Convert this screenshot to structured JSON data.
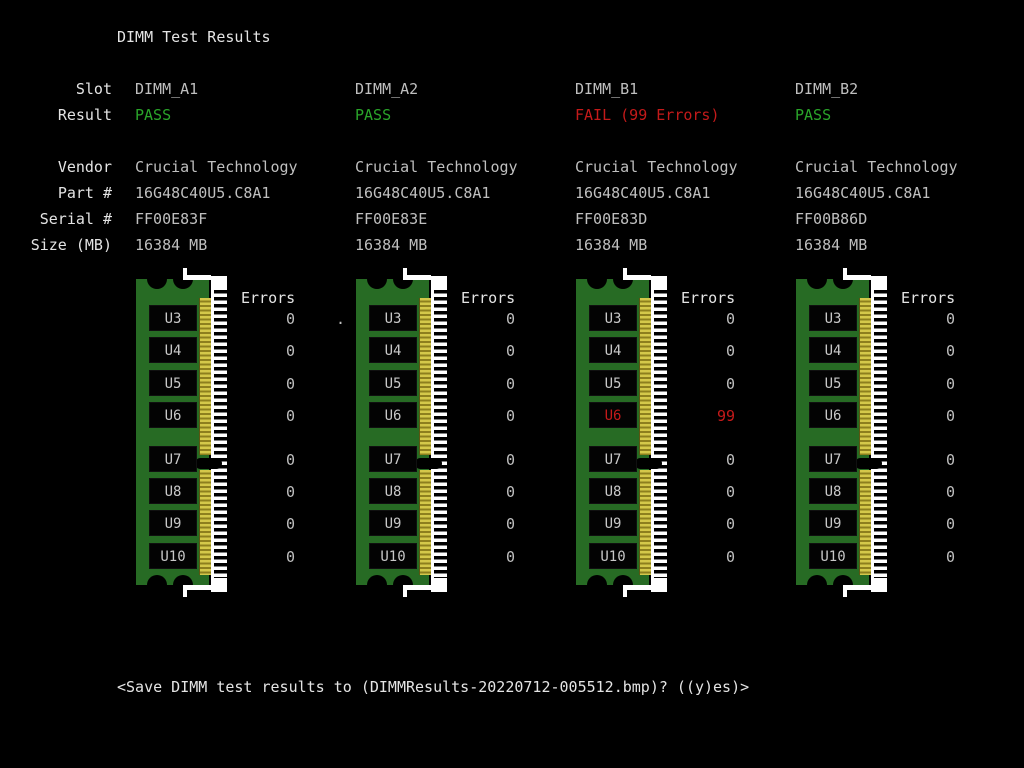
{
  "title": "DIMM Test Results",
  "labels": {
    "slot": "Slot",
    "result": "Result",
    "vendor": "Vendor",
    "part": "Part #",
    "serial": "Serial #",
    "size": "Size (MB)"
  },
  "errors_header": "Errors",
  "stray_dot": ".",
  "footer_prompt": "<Save DIMM test results to (DIMMResults-20220712-005512.bmp)? ((y)es)>",
  "colors": {
    "background": "#000000",
    "text": "#e4e4e4",
    "value": "#bfbfbf",
    "pass": "#2aa52a",
    "fail": "#c41a1a",
    "pcb_green": "#276b24",
    "gold_pin": "#d4c84a",
    "gold_pin_dark": "#8d7f1e",
    "socket_white": "#ffffff"
  },
  "slots": [
    {
      "name": "DIMM_A1",
      "result": "PASS",
      "status": "pass",
      "vendor": "Crucial Technology",
      "part": "16G48C40U5.C8A1",
      "serial": "FF00E83F",
      "size": "16384 MB",
      "chips": [
        {
          "label": "U3",
          "errors": "0",
          "status": "ok"
        },
        {
          "label": "U4",
          "errors": "0",
          "status": "ok"
        },
        {
          "label": "U5",
          "errors": "0",
          "status": "ok"
        },
        {
          "label": "U6",
          "errors": "0",
          "status": "ok"
        },
        {
          "label": "U7",
          "errors": "0",
          "status": "ok"
        },
        {
          "label": "U8",
          "errors": "0",
          "status": "ok"
        },
        {
          "label": "U9",
          "errors": "0",
          "status": "ok"
        },
        {
          "label": "U10",
          "errors": "0",
          "status": "ok"
        }
      ]
    },
    {
      "name": "DIMM_A2",
      "result": "PASS",
      "status": "pass",
      "vendor": "Crucial Technology",
      "part": "16G48C40U5.C8A1",
      "serial": "FF00E83E",
      "size": "16384 MB",
      "chips": [
        {
          "label": "U3",
          "errors": "0",
          "status": "ok"
        },
        {
          "label": "U4",
          "errors": "0",
          "status": "ok"
        },
        {
          "label": "U5",
          "errors": "0",
          "status": "ok"
        },
        {
          "label": "U6",
          "errors": "0",
          "status": "ok"
        },
        {
          "label": "U7",
          "errors": "0",
          "status": "ok"
        },
        {
          "label": "U8",
          "errors": "0",
          "status": "ok"
        },
        {
          "label": "U9",
          "errors": "0",
          "status": "ok"
        },
        {
          "label": "U10",
          "errors": "0",
          "status": "ok"
        }
      ]
    },
    {
      "name": "DIMM_B1",
      "result": "FAIL (99 Errors)",
      "status": "fail",
      "vendor": "Crucial Technology",
      "part": "16G48C40U5.C8A1",
      "serial": "FF00E83D",
      "size": "16384 MB",
      "chips": [
        {
          "label": "U3",
          "errors": "0",
          "status": "ok"
        },
        {
          "label": "U4",
          "errors": "0",
          "status": "ok"
        },
        {
          "label": "U5",
          "errors": "0",
          "status": "ok"
        },
        {
          "label": "U6",
          "errors": "99",
          "status": "fail"
        },
        {
          "label": "U7",
          "errors": "0",
          "status": "ok"
        },
        {
          "label": "U8",
          "errors": "0",
          "status": "ok"
        },
        {
          "label": "U9",
          "errors": "0",
          "status": "ok"
        },
        {
          "label": "U10",
          "errors": "0",
          "status": "ok"
        }
      ]
    },
    {
      "name": "DIMM_B2",
      "result": "PASS",
      "status": "pass",
      "vendor": "Crucial Technology",
      "part": "16G48C40U5.C8A1",
      "serial": "FF00B86D",
      "size": "16384 MB",
      "chips": [
        {
          "label": "U3",
          "errors": "0",
          "status": "ok"
        },
        {
          "label": "U4",
          "errors": "0",
          "status": "ok"
        },
        {
          "label": "U5",
          "errors": "0",
          "status": "ok"
        },
        {
          "label": "U6",
          "errors": "0",
          "status": "ok"
        },
        {
          "label": "U7",
          "errors": "0",
          "status": "ok"
        },
        {
          "label": "U8",
          "errors": "0",
          "status": "ok"
        },
        {
          "label": "U9",
          "errors": "0",
          "status": "ok"
        },
        {
          "label": "U10",
          "errors": "0",
          "status": "ok"
        }
      ]
    }
  ]
}
